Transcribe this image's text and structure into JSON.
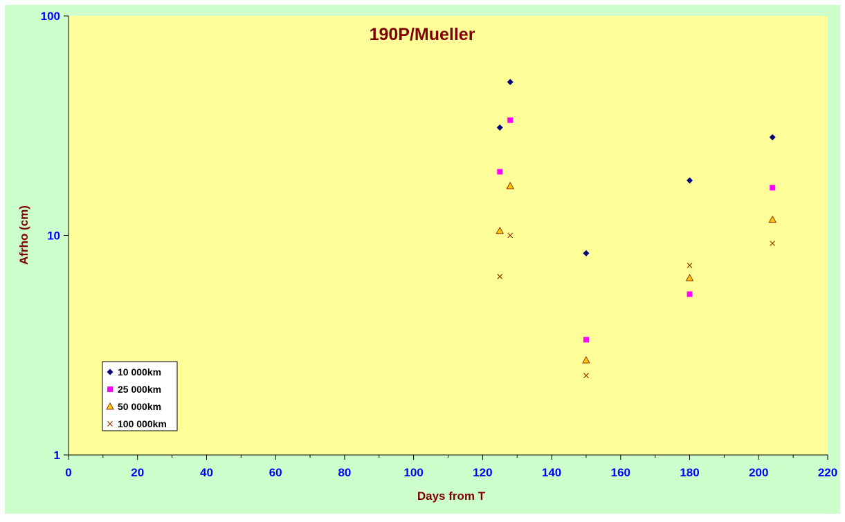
{
  "chart_data": {
    "type": "scatter",
    "title": "190P/Mueller",
    "xlabel": "Days from T",
    "ylabel": "Afrho (cm)",
    "xlim": [
      0,
      220
    ],
    "ylim": [
      1,
      100
    ],
    "yscale": "log",
    "x_ticks": [
      0,
      20,
      40,
      60,
      80,
      100,
      120,
      140,
      160,
      180,
      200,
      220
    ],
    "y_ticks": [
      1,
      10,
      100
    ],
    "grid": false,
    "legend_position": "bottom-left",
    "colors": {
      "figure_background": "#ccffcc",
      "plot_background": "#ffff99",
      "title": "#800000",
      "axis_label": "#800000",
      "tick_label": "#0000ff"
    },
    "series": [
      {
        "name": "10 000km",
        "marker": "diamond",
        "color": "#000080",
        "points": [
          [
            125,
            31
          ],
          [
            128,
            50
          ],
          [
            150,
            8.3
          ],
          [
            180,
            17.8
          ],
          [
            204,
            28
          ]
        ]
      },
      {
        "name": "25 000km",
        "marker": "square",
        "color": "#ff00ff",
        "points": [
          [
            125,
            19.5
          ],
          [
            128,
            33.5
          ],
          [
            150,
            3.35
          ],
          [
            180,
            5.4
          ],
          [
            204,
            16.5
          ]
        ]
      },
      {
        "name": "50 000km",
        "marker": "triangle",
        "color": "#ffcc00",
        "points": [
          [
            125,
            10.5
          ],
          [
            128,
            16.8
          ],
          [
            150,
            2.7
          ],
          [
            180,
            6.4
          ],
          [
            204,
            11.8
          ]
        ]
      },
      {
        "name": "100 000km",
        "marker": "x",
        "color": "#993300",
        "points": [
          [
            125,
            6.5
          ],
          [
            128,
            10
          ],
          [
            150,
            2.3
          ],
          [
            180,
            7.3
          ],
          [
            204,
            9.2
          ]
        ]
      }
    ]
  }
}
